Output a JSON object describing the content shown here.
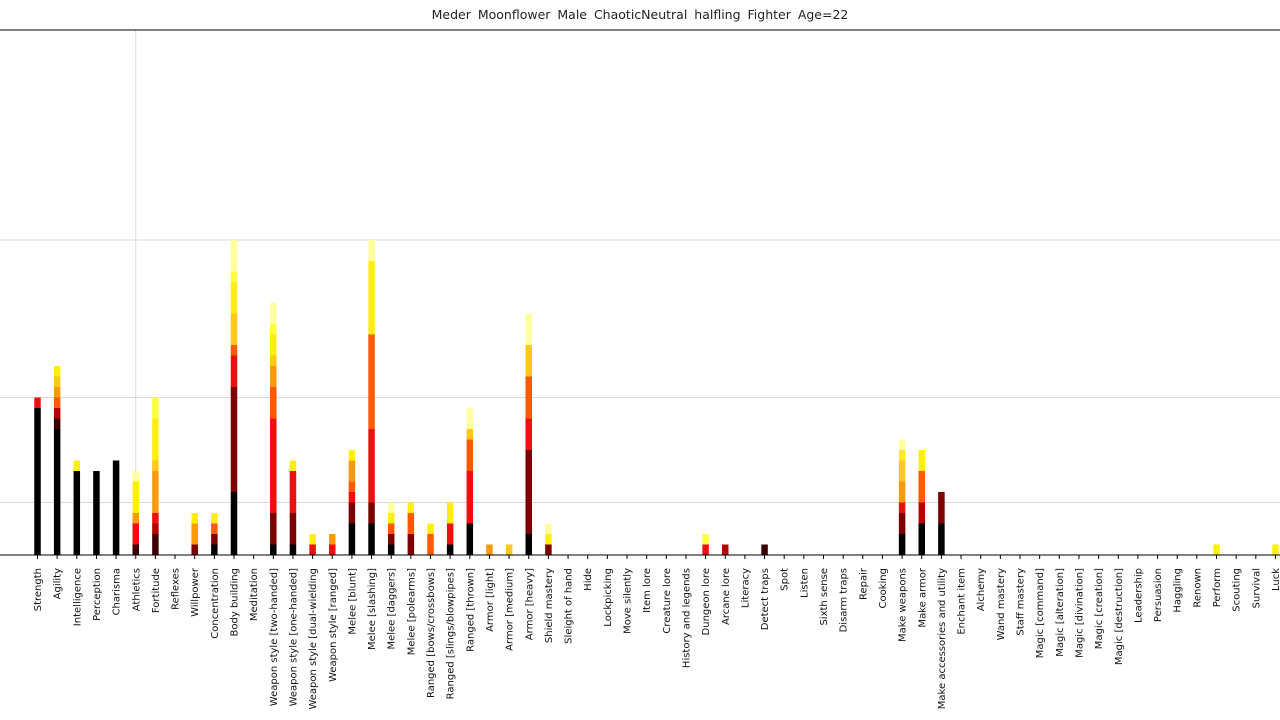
{
  "title": "Meder  Moonflower  Male  ChaoticNeutral  halfling  Fighter  Age=22",
  "chart_data": {
    "type": "bar",
    "stacked": true,
    "title": "Meder  Moonflower  Male  ChaoticNeutral  halfling  Fighter  Age=22",
    "xlabel": "",
    "ylabel": "",
    "ylim": [
      0,
      50
    ],
    "grid_lines_y": [
      5,
      15,
      30,
      50
    ],
    "grid_lines_x_categories": [
      "Athletics"
    ],
    "legend": "none",
    "segment_colors": [
      "#000000",
      "#3d0000",
      "#7d0000",
      "#b80000",
      "#ee1010",
      "#ff5a00",
      "#ff9a10",
      "#ffc81a",
      "#ffee10",
      "#ffff40",
      "#ffffa0"
    ],
    "categories": [
      "Strength",
      "Agility",
      "Intelligence",
      "Perception",
      "Charisma",
      "Athletics",
      "Fortitude",
      "Reflexes",
      "Willpower",
      "Concentration",
      "Body building",
      "Meditation",
      "Weapon style [two-handed]",
      "Weapon style [one-handed]",
      "Weapon style [dual-wielding",
      "Weapon style [ranged]",
      "Melee  [blunt]",
      "Melee  [slashing]",
      "Melee  [daggers]",
      "Melee  [polearms]",
      "Ranged  [bows/crossbows]",
      "Ranged  [slings/blowpipes]",
      "Ranged  [thrown]",
      "Armor [light]",
      "Armor [medium]",
      "Armor [heavy]",
      "Shield mastery",
      "Sleight of hand",
      "Hide",
      "Lockpicking",
      "Move silently",
      "Item lore",
      "Creature lore",
      "History and legends",
      "Dungeon lore",
      "Arcane lore",
      "Literacy",
      "Detect traps",
      "Spot",
      "Listen",
      "Sixth sense",
      "Disarm traps",
      "Repair",
      "Cooking",
      "Make weapons",
      "Make armor",
      "Make accessories and utility",
      "Enchant item",
      "Alchemy",
      "Wand mastery",
      "Staff mastery",
      "Magic  [command]",
      "Magic  [alteration]",
      "Magic  [divination]",
      "Magic  [creation]",
      "Magic  [destruction]",
      "Leadership",
      "Persuasion",
      "Haggling",
      "Renown",
      "Perform",
      "Scouting",
      "Survival",
      "Luck"
    ],
    "stacks": [
      [
        [
          14,
          "#000000"
        ],
        [
          1,
          "#ee1010"
        ]
      ],
      [
        [
          12,
          "#000000"
        ],
        [
          1,
          "#3d0000"
        ],
        [
          1,
          "#b80000"
        ],
        [
          1,
          "#ff5a00"
        ],
        [
          1,
          "#ff9a10"
        ],
        [
          1,
          "#ffc81a"
        ],
        [
          1,
          "#ffee10"
        ]
      ],
      [
        [
          8,
          "#000000"
        ],
        [
          1,
          "#ffee10"
        ]
      ],
      [
        [
          8,
          "#000000"
        ]
      ],
      [
        [
          9,
          "#000000"
        ]
      ],
      [
        [
          1,
          "#3d0000"
        ],
        [
          2,
          "#ee1010"
        ],
        [
          1,
          "#ff9a10"
        ],
        [
          3,
          "#ffee10"
        ],
        [
          1,
          "#ffffa0"
        ]
      ],
      [
        [
          2,
          "#3d0000"
        ],
        [
          1,
          "#b80000"
        ],
        [
          1,
          "#ee1010"
        ],
        [
          4,
          "#ff9a10"
        ],
        [
          1,
          "#ffc81a"
        ],
        [
          4,
          "#ffee10"
        ],
        [
          2,
          "#ffff40"
        ]
      ],
      [],
      [
        [
          1,
          "#7d0000"
        ],
        [
          2,
          "#ff9a10"
        ],
        [
          1,
          "#ffee10"
        ]
      ],
      [
        [
          1,
          "#000000"
        ],
        [
          1,
          "#7d0000"
        ],
        [
          1,
          "#ff5a00"
        ],
        [
          1,
          "#ffee10"
        ]
      ],
      [
        [
          6,
          "#000000"
        ],
        [
          10,
          "#7d0000"
        ],
        [
          3,
          "#ee1010"
        ],
        [
          1,
          "#ff5a00"
        ],
        [
          3,
          "#ffc81a"
        ],
        [
          3,
          "#ffee10"
        ],
        [
          1,
          "#ffff40"
        ],
        [
          3,
          "#ffffa0"
        ]
      ],
      [],
      [
        [
          1,
          "#000000"
        ],
        [
          3,
          "#7d0000"
        ],
        [
          9,
          "#ee1010"
        ],
        [
          3,
          "#ff5a00"
        ],
        [
          2,
          "#ff9a10"
        ],
        [
          1,
          "#ffc81a"
        ],
        [
          2,
          "#ffee10"
        ],
        [
          1,
          "#ffff40"
        ],
        [
          2,
          "#ffffa0"
        ]
      ],
      [
        [
          1,
          "#000000"
        ],
        [
          3,
          "#7d0000"
        ],
        [
          4,
          "#ee1010"
        ],
        [
          1,
          "#ffee10"
        ]
      ],
      [
        [
          1,
          "#ee1010"
        ],
        [
          1,
          "#ffee10"
        ]
      ],
      [
        [
          1,
          "#ee1010"
        ],
        [
          1,
          "#ff9a10"
        ]
      ],
      [
        [
          3,
          "#000000"
        ],
        [
          2,
          "#7d0000"
        ],
        [
          1,
          "#ee1010"
        ],
        [
          1,
          "#ff5a00"
        ],
        [
          2,
          "#ff9a10"
        ],
        [
          1,
          "#ffee10"
        ]
      ],
      [
        [
          3,
          "#000000"
        ],
        [
          2,
          "#7d0000"
        ],
        [
          7,
          "#ee1010"
        ],
        [
          9,
          "#ff5a00"
        ],
        [
          7,
          "#ffee10"
        ],
        [
          2,
          "#ffffa0"
        ]
      ],
      [
        [
          1,
          "#000000"
        ],
        [
          1,
          "#7d0000"
        ],
        [
          1,
          "#ff5a00"
        ],
        [
          1,
          "#ffee10"
        ],
        [
          1,
          "#ffffa0"
        ]
      ],
      [
        [
          2,
          "#7d0000"
        ],
        [
          2,
          "#ff5a00"
        ],
        [
          1,
          "#ffee10"
        ]
      ],
      [
        [
          2,
          "#ff5a00"
        ],
        [
          1,
          "#ffee10"
        ]
      ],
      [
        [
          1,
          "#000000"
        ],
        [
          2,
          "#ee1010"
        ],
        [
          2,
          "#ffee10"
        ]
      ],
      [
        [
          3,
          "#000000"
        ],
        [
          5,
          "#ee1010"
        ],
        [
          3,
          "#ff5a00"
        ],
        [
          1,
          "#ffc81a"
        ],
        [
          2,
          "#ffffa0"
        ]
      ],
      [
        [
          1,
          "#ff9a10"
        ]
      ],
      [
        [
          1,
          "#ffc81a"
        ]
      ],
      [
        [
          2,
          "#000000"
        ],
        [
          8,
          "#7d0000"
        ],
        [
          3,
          "#ee1010"
        ],
        [
          4,
          "#ff5a00"
        ],
        [
          3,
          "#ffc81a"
        ],
        [
          3,
          "#ffffa0"
        ]
      ],
      [
        [
          1,
          "#7d0000"
        ],
        [
          1,
          "#ffee10"
        ],
        [
          1,
          "#ffffa0"
        ]
      ],
      [],
      [],
      [],
      [],
      [],
      [],
      [],
      [
        [
          1,
          "#ee1010"
        ],
        [
          1,
          "#ffff40"
        ]
      ],
      [
        [
          1,
          "#b80000"
        ]
      ],
      [],
      [
        [
          1,
          "#3d0000"
        ]
      ],
      [],
      [],
      [],
      [],
      [],
      [],
      [
        [
          2,
          "#000000"
        ],
        [
          2,
          "#7d0000"
        ],
        [
          1,
          "#ee1010"
        ],
        [
          2,
          "#ff9a10"
        ],
        [
          2,
          "#ffc81a"
        ],
        [
          1,
          "#ffee10"
        ],
        [
          1,
          "#ffffa0"
        ]
      ],
      [
        [
          3,
          "#000000"
        ],
        [
          2,
          "#b80000"
        ],
        [
          3,
          "#ff5a00"
        ],
        [
          2,
          "#ffee10"
        ]
      ],
      [
        [
          3,
          "#000000"
        ],
        [
          3,
          "#7d0000"
        ]
      ],
      [],
      [],
      [],
      [],
      [],
      [],
      [],
      [],
      [],
      [],
      [],
      [],
      [],
      [
        [
          1,
          "#ffee10"
        ]
      ],
      [],
      [],
      [
        [
          1,
          "#ffee10"
        ]
      ]
    ]
  }
}
